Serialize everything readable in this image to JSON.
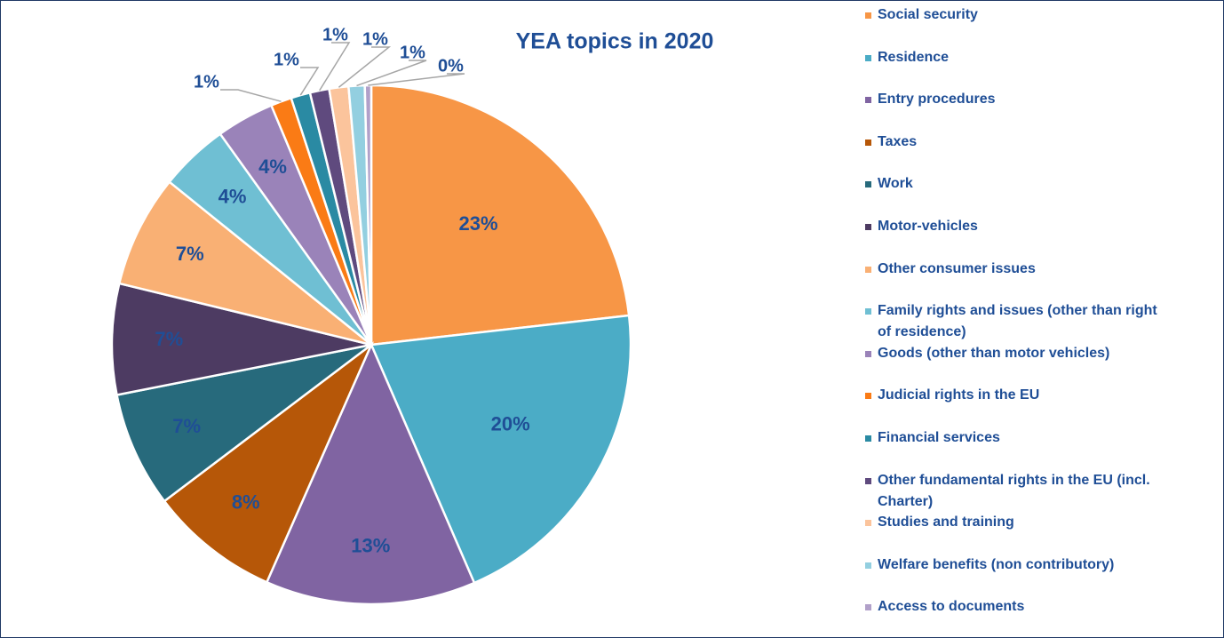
{
  "chart_data": {
    "type": "pie",
    "title": "YEA topics in 2020",
    "categories": [
      "Social security",
      "Residence",
      "Entry procedures",
      "Taxes",
      "Work",
      "Motor-vehicles",
      "Other consumer issues",
      "Family rights and issues (other than right of residence)",
      "Goods (other than motor vehicles)",
      "Judicial rights in the EU",
      "Financial services",
      "Other fundamental rights in the EU (incl. Charter)",
      "Studies and training",
      "Welfare benefits (non contributory)",
      "Access to documents"
    ],
    "values": [
      23.2,
      20.3,
      13.1,
      8.1,
      7.2,
      6.9,
      7.0,
      4.3,
      3.6,
      1.3,
      1.2,
      1.2,
      1.2,
      1.0,
      0.4
    ],
    "value_labels": [
      "23%",
      "20%",
      "13%",
      "8%",
      "7%",
      "7%",
      "7%",
      "4%",
      "4%",
      "1%",
      "1%",
      "1%",
      "1%",
      "1%",
      "0%"
    ],
    "colors": [
      "#f79646",
      "#4bacc6",
      "#8064a2",
      "#b65708",
      "#276a7c",
      "#4d3b62",
      "#f9b074",
      "#6fbfd3",
      "#9a83b9",
      "#fa7b15",
      "#2a8aa3",
      "#5f4a7e",
      "#fbc49c",
      "#93cfe0",
      "#b1a0c9"
    ],
    "legend": "right"
  }
}
